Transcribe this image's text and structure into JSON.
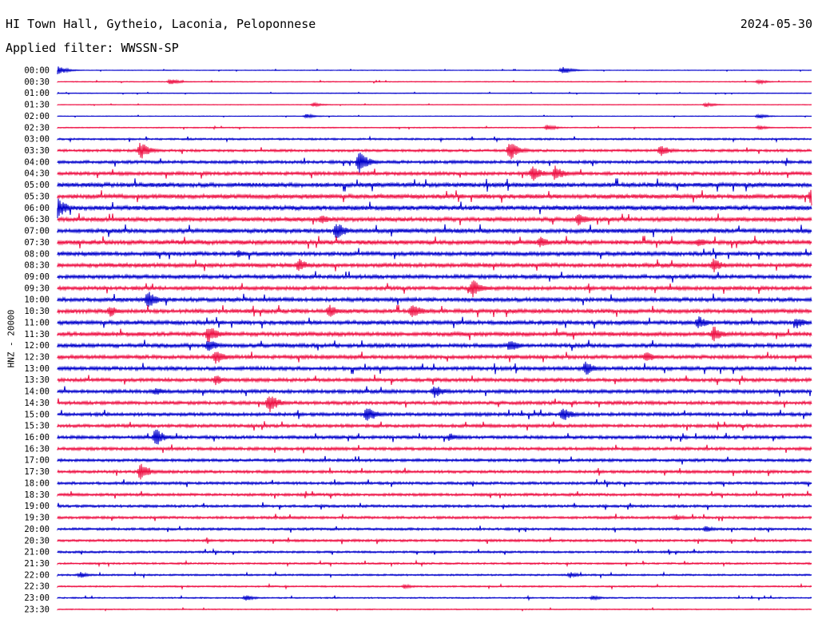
{
  "header": {
    "station": "HI Town Hall, Gytheio, Laconia, Peloponnese",
    "date": "2024-05-30",
    "filter_label": "Applied filter:",
    "filter_value": "WWSSN-SP"
  },
  "chart_data": {
    "type": "line",
    "title": "HI Town Hall, Gytheio, Laconia, Peloponnese",
    "ylabel": "HNZ - 20000",
    "xlabel": "",
    "colors": {
      "odd_rows": "#0000cc",
      "even_rows": "#ee1144",
      "text": "#000000"
    },
    "grid": false,
    "categories": [
      "00:00",
      "00:30",
      "01:00",
      "01:30",
      "02:00",
      "02:30",
      "03:00",
      "03:30",
      "04:00",
      "04:30",
      "05:00",
      "05:30",
      "06:00",
      "06:30",
      "07:00",
      "07:30",
      "08:00",
      "08:30",
      "09:00",
      "09:30",
      "10:00",
      "10:30",
      "11:00",
      "11:30",
      "12:00",
      "12:30",
      "13:00",
      "13:30",
      "14:00",
      "14:30",
      "15:00",
      "15:30",
      "16:00",
      "16:30",
      "17:00",
      "17:30",
      "18:00",
      "18:30",
      "19:00",
      "19:30",
      "20:00",
      "20:30",
      "21:00",
      "21:30",
      "22:00",
      "22:30",
      "23:00",
      "23:30"
    ],
    "row_minutes": 30,
    "noise_level": [
      0.4,
      0.5,
      0.4,
      0.4,
      0.4,
      0.6,
      1.1,
      1.5,
      1.8,
      2.0,
      2.6,
      2.6,
      2.8,
      2.5,
      2.6,
      2.6,
      2.4,
      2.4,
      2.3,
      2.2,
      2.4,
      2.4,
      2.4,
      2.4,
      2.3,
      2.2,
      2.2,
      2.1,
      2.1,
      2.0,
      2.0,
      1.9,
      1.9,
      1.8,
      1.7,
      1.7,
      1.6,
      1.6,
      1.5,
      1.5,
      1.4,
      1.4,
      1.2,
      1.1,
      1.0,
      0.9,
      0.8,
      0.6
    ],
    "events": [
      {
        "row": 0,
        "t": 0.0,
        "amp": 6
      },
      {
        "row": 0,
        "t": 0.67,
        "amp": 5
      },
      {
        "row": 1,
        "t": 0.15,
        "amp": 4
      },
      {
        "row": 1,
        "t": 0.93,
        "amp": 3
      },
      {
        "row": 3,
        "t": 0.34,
        "amp": 3
      },
      {
        "row": 3,
        "t": 0.86,
        "amp": 3
      },
      {
        "row": 4,
        "t": 0.33,
        "amp": 3
      },
      {
        "row": 4,
        "t": 0.93,
        "amp": 3
      },
      {
        "row": 5,
        "t": 0.65,
        "amp": 4
      },
      {
        "row": 5,
        "t": 0.93,
        "amp": 3
      },
      {
        "row": 7,
        "t": 0.11,
        "amp": 12
      },
      {
        "row": 7,
        "t": 0.6,
        "amp": 13
      },
      {
        "row": 7,
        "t": 0.8,
        "amp": 8
      },
      {
        "row": 8,
        "t": 0.4,
        "amp": 14
      },
      {
        "row": 9,
        "t": 0.63,
        "amp": 11
      },
      {
        "row": 9,
        "t": 0.66,
        "amp": 10
      },
      {
        "row": 11,
        "t": 1.0,
        "amp": 13
      },
      {
        "row": 12,
        "t": 0.0,
        "amp": 14
      },
      {
        "row": 13,
        "t": 0.35,
        "amp": 7
      },
      {
        "row": 13,
        "t": 0.69,
        "amp": 9
      },
      {
        "row": 14,
        "t": 0.37,
        "amp": 12
      },
      {
        "row": 15,
        "t": 0.64,
        "amp": 8
      },
      {
        "row": 15,
        "t": 0.85,
        "amp": 7
      },
      {
        "row": 16,
        "t": 0.24,
        "amp": 5
      },
      {
        "row": 17,
        "t": 0.32,
        "amp": 9
      },
      {
        "row": 17,
        "t": 0.87,
        "amp": 10
      },
      {
        "row": 19,
        "t": 0.55,
        "amp": 13
      },
      {
        "row": 20,
        "t": 0.12,
        "amp": 12
      },
      {
        "row": 21,
        "t": 0.07,
        "amp": 8
      },
      {
        "row": 21,
        "t": 0.36,
        "amp": 9
      },
      {
        "row": 21,
        "t": 0.47,
        "amp": 11
      },
      {
        "row": 22,
        "t": 0.85,
        "amp": 9
      },
      {
        "row": 22,
        "t": 0.98,
        "amp": 8
      },
      {
        "row": 23,
        "t": 0.2,
        "amp": 12
      },
      {
        "row": 23,
        "t": 0.87,
        "amp": 11
      },
      {
        "row": 24,
        "t": 0.6,
        "amp": 9
      },
      {
        "row": 24,
        "t": 0.2,
        "amp": 9
      },
      {
        "row": 25,
        "t": 0.21,
        "amp": 10
      },
      {
        "row": 25,
        "t": 0.78,
        "amp": 8
      },
      {
        "row": 26,
        "t": 0.7,
        "amp": 10
      },
      {
        "row": 27,
        "t": 0.21,
        "amp": 7
      },
      {
        "row": 28,
        "t": 0.5,
        "amp": 9
      },
      {
        "row": 28,
        "t": 0.13,
        "amp": 6
      },
      {
        "row": 29,
        "t": 0.28,
        "amp": 14
      },
      {
        "row": 30,
        "t": 0.41,
        "amp": 11
      },
      {
        "row": 30,
        "t": 0.67,
        "amp": 10
      },
      {
        "row": 32,
        "t": 0.13,
        "amp": 12
      },
      {
        "row": 32,
        "t": 0.52,
        "amp": 6
      },
      {
        "row": 35,
        "t": 0.11,
        "amp": 11
      },
      {
        "row": 39,
        "t": 0.82,
        "amp": 4
      },
      {
        "row": 40,
        "t": 0.86,
        "amp": 5
      },
      {
        "row": 44,
        "t": 0.03,
        "amp": 4
      },
      {
        "row": 44,
        "t": 0.68,
        "amp": 4
      },
      {
        "row": 45,
        "t": 0.46,
        "amp": 3
      },
      {
        "row": 46,
        "t": 0.25,
        "amp": 4
      },
      {
        "row": 46,
        "t": 0.71,
        "amp": 3
      }
    ]
  }
}
